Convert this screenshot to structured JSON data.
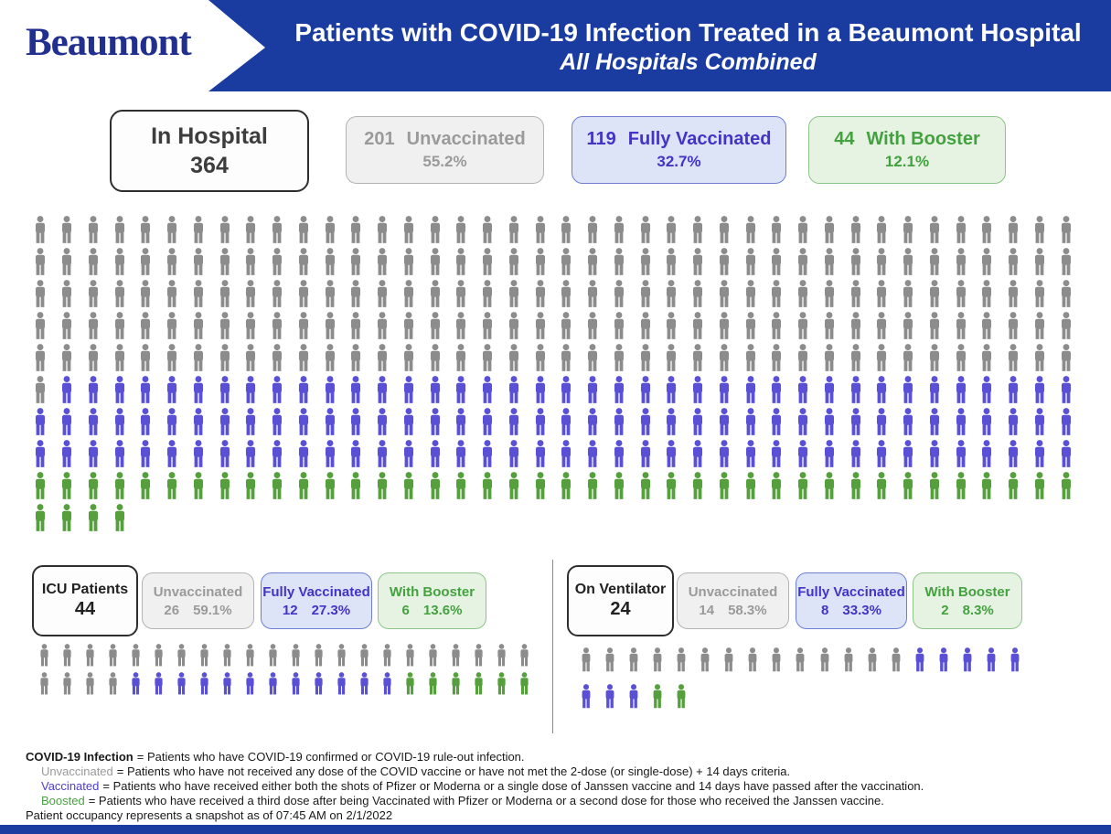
{
  "header": {
    "logo_text": "Beaumont",
    "title_line1": "Patients with COVID-19 Infection Treated in a Beaumont Hospital",
    "title_line2": "All Hospitals Combined"
  },
  "colors": {
    "banner_blue": "#1a3ca1",
    "logo_navy": "#212f8e",
    "unvaccinated_gray": "#8c8c8c",
    "vaccinated_blue": "#5950d6",
    "boosted_green": "#55a03c",
    "fn_blue": "#4d41cc",
    "fn_green": "#49a340",
    "card_gray": {
      "bg": "#f0f0f0",
      "border": "#b3b3b3",
      "text": "#9a9a9a"
    },
    "card_blue": {
      "bg": "#dde4f8",
      "border": "#6d7fd4",
      "text": "#4333c6"
    },
    "card_green": {
      "bg": "#e7f3e2",
      "border": "#8cc488",
      "text": "#44a13f"
    }
  },
  "summary": {
    "total_box": {
      "label": "In Hospital",
      "value": "364"
    },
    "cards": [
      {
        "count": "201",
        "label": "Unvaccinated",
        "pct": "55.2%"
      },
      {
        "count": "119",
        "label": "Fully Vaccinated",
        "pct": "32.7%"
      },
      {
        "count": "44",
        "label": "With Booster",
        "pct": "12.1%"
      }
    ]
  },
  "icu": {
    "title_box": {
      "label": "ICU Patients",
      "value": "44"
    },
    "cards": [
      {
        "label": "Unvaccinated",
        "count": "26",
        "pct": "59.1%"
      },
      {
        "label": "Fully Vaccinated",
        "count": "12",
        "pct": "27.3%"
      },
      {
        "label": "With Booster",
        "count": "6",
        "pct": "13.6%"
      }
    ]
  },
  "ventilator": {
    "title_box": {
      "label": "On Ventilator",
      "value": "24"
    },
    "cards": [
      {
        "label": "Unvaccinated",
        "count": "14",
        "pct": "58.3%"
      },
      {
        "label": "Fully Vaccinated",
        "count": "8",
        "pct": "33.3%"
      },
      {
        "label": "With Booster",
        "count": "2",
        "pct": "8.3%"
      }
    ]
  },
  "footnotes": [
    {
      "term": "COVID-19 Infection",
      "text": "= Patients who have COVID-19 confirmed or COVID-19 rule-out infection."
    },
    {
      "term": "Unvaccinated",
      "text": "= Patients who have not received any dose of the COVID vaccine or have not met the 2-dose (or single-dose) + 14 days criteria."
    },
    {
      "term": "Vaccinated",
      "text": "= Patients who have received either both the shots of Pfizer or Moderna or a single dose of Janssen vaccine and 14 days have passed after the vaccination."
    },
    {
      "term": "Boosted",
      "text": "= Patients who have received a third dose after being Vaccinated with Pfizer or Moderna or a second dose for those who received the Janssen vaccine."
    }
  ],
  "snapshot_note": "Patient occupancy represents a snapshot as of 07:45 AM on 2/1/2022",
  "chart_data": [
    {
      "type": "pictograph",
      "title": "In Hospital",
      "total": 364,
      "icons_per_row": 40,
      "series": [
        {
          "name": "Unvaccinated",
          "value": 201,
          "color": "#8c8c8c"
        },
        {
          "name": "Fully Vaccinated",
          "value": 119,
          "color": "#5950d6"
        },
        {
          "name": "With Booster",
          "value": 44,
          "color": "#55a03c"
        }
      ]
    },
    {
      "type": "pictograph",
      "title": "ICU Patients",
      "total": 44,
      "icons_per_row": 22,
      "series": [
        {
          "name": "Unvaccinated",
          "value": 26,
          "color": "#8c8c8c"
        },
        {
          "name": "Fully Vaccinated",
          "value": 12,
          "color": "#5950d6"
        },
        {
          "name": "With Booster",
          "value": 6,
          "color": "#55a03c"
        }
      ]
    },
    {
      "type": "pictograph",
      "title": "On Ventilator",
      "total": 24,
      "icons_per_row": 19,
      "series": [
        {
          "name": "Unvaccinated",
          "value": 14,
          "color": "#8c8c8c"
        },
        {
          "name": "Fully Vaccinated",
          "value": 8,
          "color": "#5950d6"
        },
        {
          "name": "With Booster",
          "value": 2,
          "color": "#55a03c"
        }
      ]
    }
  ]
}
